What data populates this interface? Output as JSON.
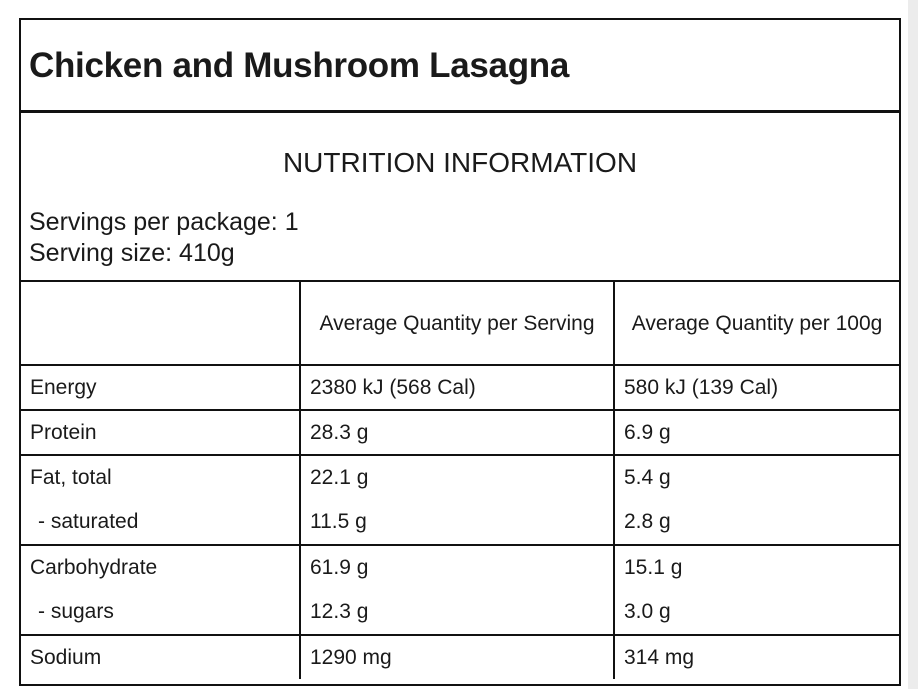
{
  "title": "Chicken and Mushroom Lasagna",
  "heading": "NUTRITION INFORMATION",
  "servings_per_package": "Servings per package: 1",
  "serving_size": "Serving size: 410g",
  "columns": [
    "",
    "Average Quantity per Serving",
    "Average Quantity per 100g"
  ],
  "rows": [
    {
      "name": "Energy",
      "serving": "2380 kJ (568 Cal)",
      "per100": "580 kJ (139 Cal)"
    },
    {
      "name": "Protein",
      "serving": "28.3 g",
      "per100": "6.9 g"
    },
    {
      "name": "Fat, total",
      "serving": "22.1 g",
      "per100": "5.4 g",
      "sub": {
        "name": "- saturated",
        "serving": "11.5 g",
        "per100": "2.8 g"
      }
    },
    {
      "name": "Carbohydrate",
      "serving": "61.9 g",
      "per100": "15.1 g",
      "sub": {
        "name": "- sugars",
        "serving": "12.3 g",
        "per100": "3.0 g"
      }
    },
    {
      "name": "Sodium",
      "serving": "1290 mg",
      "per100": "314 mg"
    }
  ]
}
